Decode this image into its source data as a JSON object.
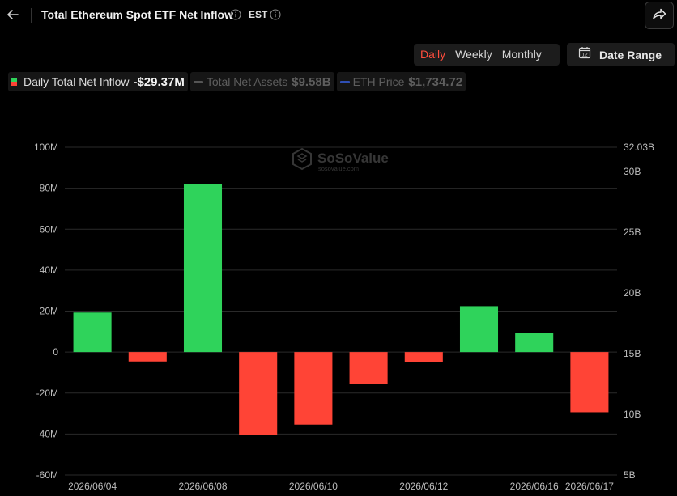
{
  "header": {
    "title": "Total Ethereum Spot ETF Net Inflow",
    "timezone": "EST"
  },
  "controls": {
    "periods": [
      "Daily",
      "Weekly",
      "Monthly"
    ],
    "active_period": "Daily",
    "date_range_label": "Date Range",
    "date_range_icon_text": "12"
  },
  "legend": [
    {
      "label": "Daily Total Net Inflow",
      "value": "-$29.37M",
      "active": true
    },
    {
      "label": "Total Net Assets",
      "value": "$9.58B",
      "active": false
    },
    {
      "label": "ETH Price",
      "value": "$1,734.72",
      "active": false
    }
  ],
  "colors": {
    "positive": "#2fd35b",
    "negative": "#ff4436",
    "accent": "#ff4d3d",
    "eth_line": "#2f4fb5",
    "assets_line": "#555555"
  },
  "watermark": {
    "brand": "SoSoValue",
    "domain": "sosovalue.com"
  },
  "chart_data": {
    "type": "bar",
    "x": [
      "2026/06/04",
      "2026/06/05",
      "2026/06/08",
      "2026/06/09",
      "2026/06/10",
      "2026/06/11",
      "2026/06/12",
      "2026/06/15",
      "2026/06/16",
      "2026/06/17"
    ],
    "xtick_labels": [
      "2026/06/04",
      "2026/06/08",
      "2026/06/10",
      "2026/06/12",
      "2026/06/16",
      "2026/06/17"
    ],
    "series": [
      {
        "name": "Daily Total Net Inflow",
        "values": [
          19.3,
          -4.6,
          82.1,
          -40.6,
          -35.4,
          -15.7,
          -4.7,
          22.4,
          9.5,
          -29.37
        ]
      }
    ],
    "ylim": [
      -60,
      100
    ],
    "yticks": [
      -60,
      -40,
      -20,
      0,
      20,
      40,
      60,
      80,
      100
    ],
    "ytick_labels": [
      "-60M",
      "-40M",
      "-20M",
      "0",
      "20M",
      "40M",
      "60M",
      "80M",
      "100M"
    ],
    "y2_ticks": [
      5,
      10,
      15,
      20,
      25,
      30
    ],
    "y2_tick_labels": [
      "5B",
      "10B",
      "15B",
      "20B",
      "25B",
      "30B"
    ],
    "y2_top_label": "32.03B",
    "grid": true
  }
}
